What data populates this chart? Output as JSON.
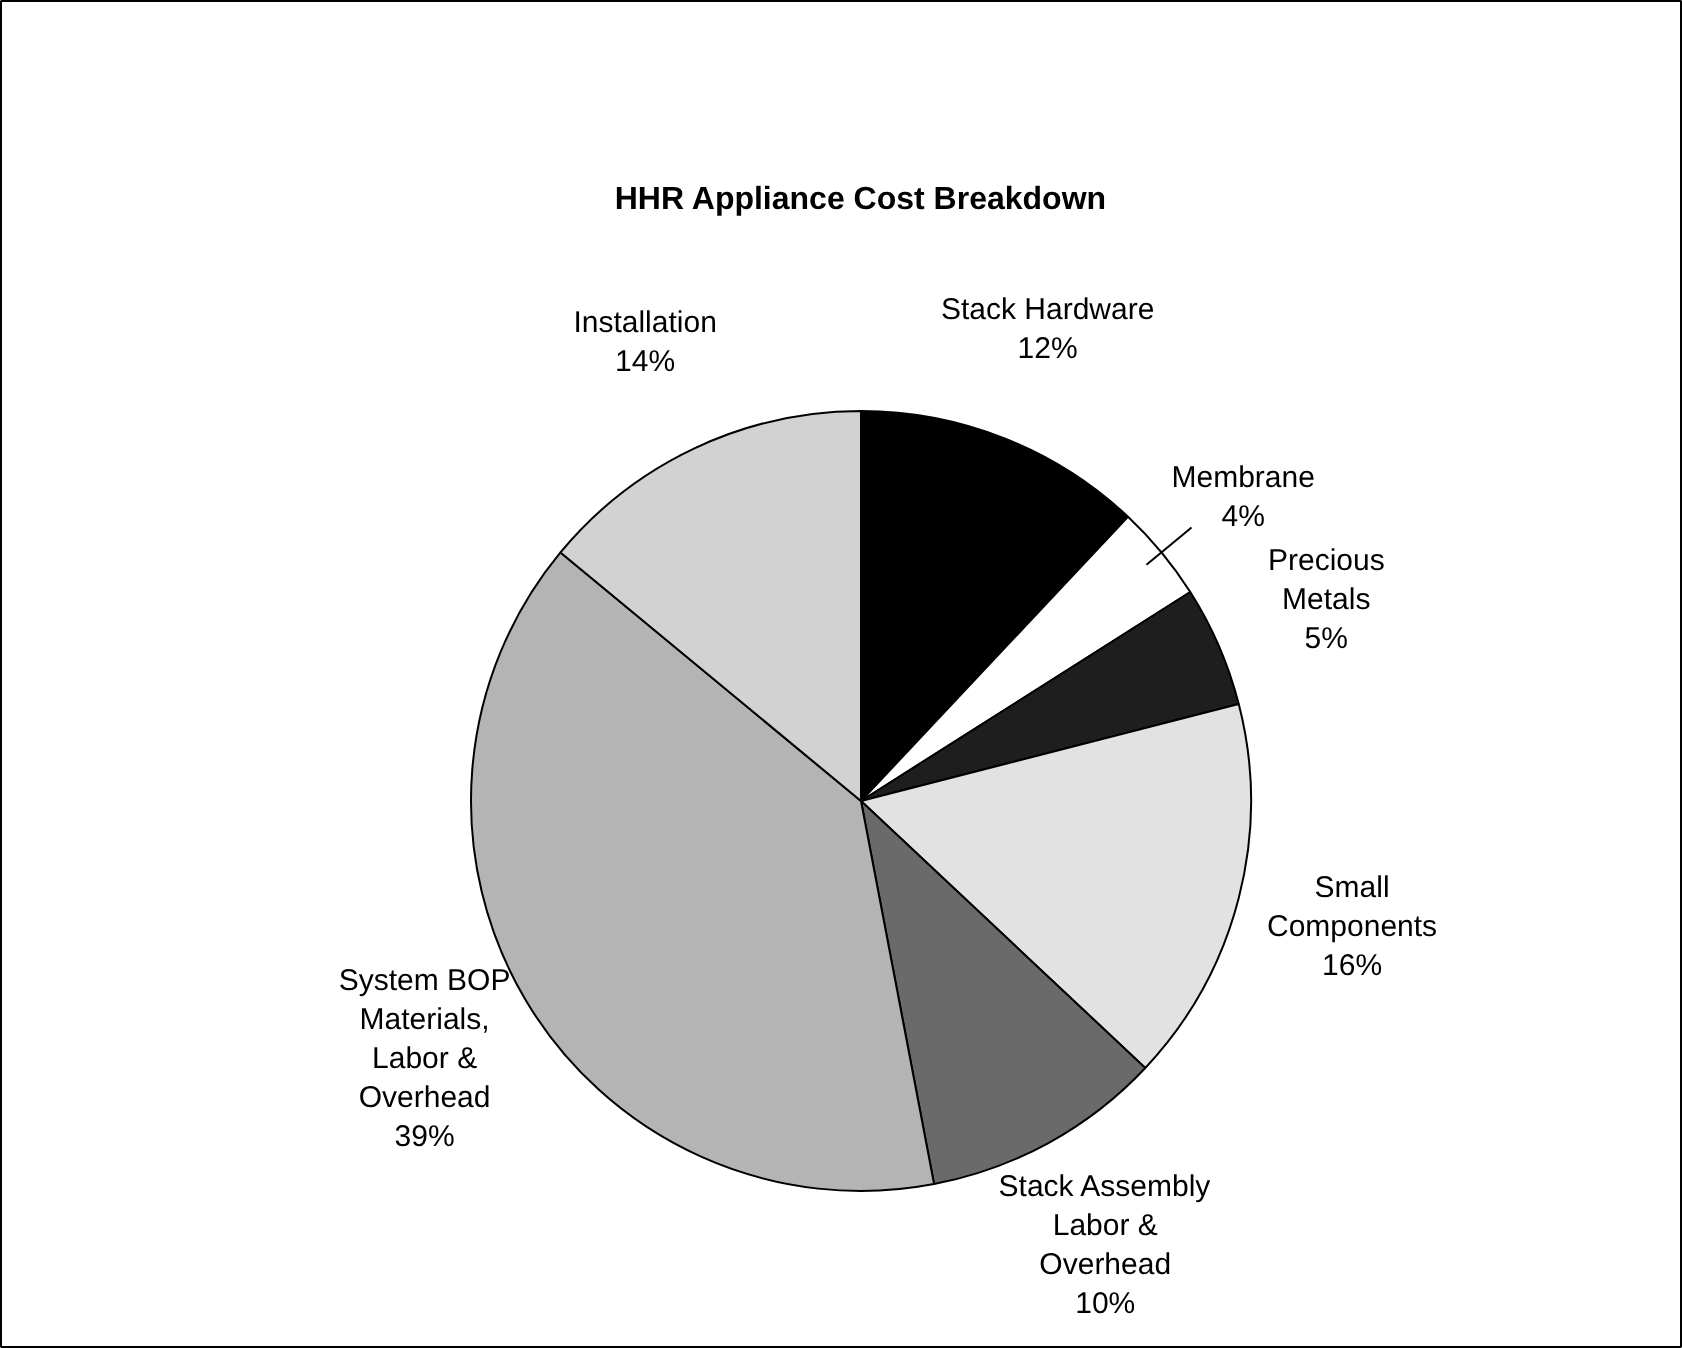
{
  "chart_data": {
    "type": "pie",
    "title": "HHR Appliance Cost Breakdown",
    "categories": [
      "Stack Hardware",
      "Membrane",
      "Precious Metals",
      "Small Components",
      "Stack Assembly Labor & Overhead",
      "System BOP Materials, Labor & Overhead",
      "Installation"
    ],
    "values": [
      12,
      4,
      5,
      16,
      10,
      39,
      14
    ],
    "colors": [
      "#000000",
      "#ffffff",
      "#1e1e1e",
      "#e2e2e2",
      "#6a6a6a",
      "#b4b4b4",
      "#d2d2d2"
    ],
    "value_labels": [
      "12%",
      "4%",
      "5%",
      "16%",
      "10%",
      "39%",
      "14%"
    ]
  }
}
